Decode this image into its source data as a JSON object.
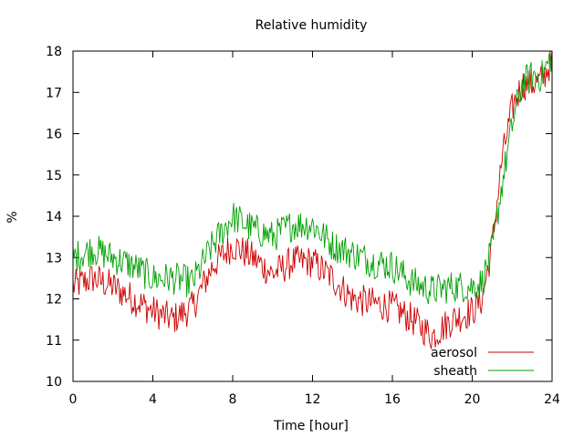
{
  "chart_data": {
    "type": "line",
    "title": "Relative humidity",
    "xlabel": "Time [hour]",
    "ylabel": "%",
    "xlim": [
      0,
      24
    ],
    "ylim": [
      10,
      18
    ],
    "xticks": [
      0,
      4,
      8,
      12,
      16,
      20,
      24
    ],
    "yticks": [
      10,
      11,
      12,
      13,
      14,
      15,
      16,
      17,
      18
    ],
    "grid": false,
    "legend_position": "bottom-right",
    "series": [
      {
        "name": "aerosol",
        "color": "#cc0000",
        "x": [
          0,
          1,
          2,
          3,
          4,
          5,
          6,
          7,
          8,
          9,
          10,
          11,
          12,
          13,
          14,
          15,
          16,
          17,
          18,
          19,
          20,
          20.5,
          21,
          21.5,
          22,
          22.5,
          23,
          23.5,
          24
        ],
        "y": [
          12.3,
          12.5,
          12.3,
          12.0,
          11.7,
          11.5,
          11.8,
          12.8,
          13.3,
          13.0,
          12.6,
          12.9,
          12.9,
          12.5,
          12.0,
          11.9,
          11.8,
          11.5,
          11.1,
          11.5,
          11.7,
          12.0,
          13.3,
          15.4,
          16.6,
          17.2,
          17.2,
          17.3,
          17.8
        ]
      },
      {
        "name": "sheath",
        "color": "#00a000",
        "x": [
          0,
          1,
          2,
          3,
          4,
          5,
          6,
          7,
          8,
          9,
          10,
          11,
          12,
          13,
          14,
          15,
          16,
          17,
          18,
          19,
          20,
          20.5,
          21,
          21.5,
          22,
          22.5,
          23,
          23.5,
          24
        ],
        "y": [
          13.0,
          13.2,
          13.0,
          12.8,
          12.5,
          12.5,
          12.4,
          13.3,
          14.0,
          13.7,
          13.5,
          13.8,
          13.8,
          13.3,
          13.1,
          12.9,
          12.8,
          12.4,
          12.2,
          12.3,
          12.3,
          12.4,
          13.2,
          14.8,
          16.2,
          17.2,
          17.4,
          17.4,
          17.9
        ]
      }
    ]
  }
}
